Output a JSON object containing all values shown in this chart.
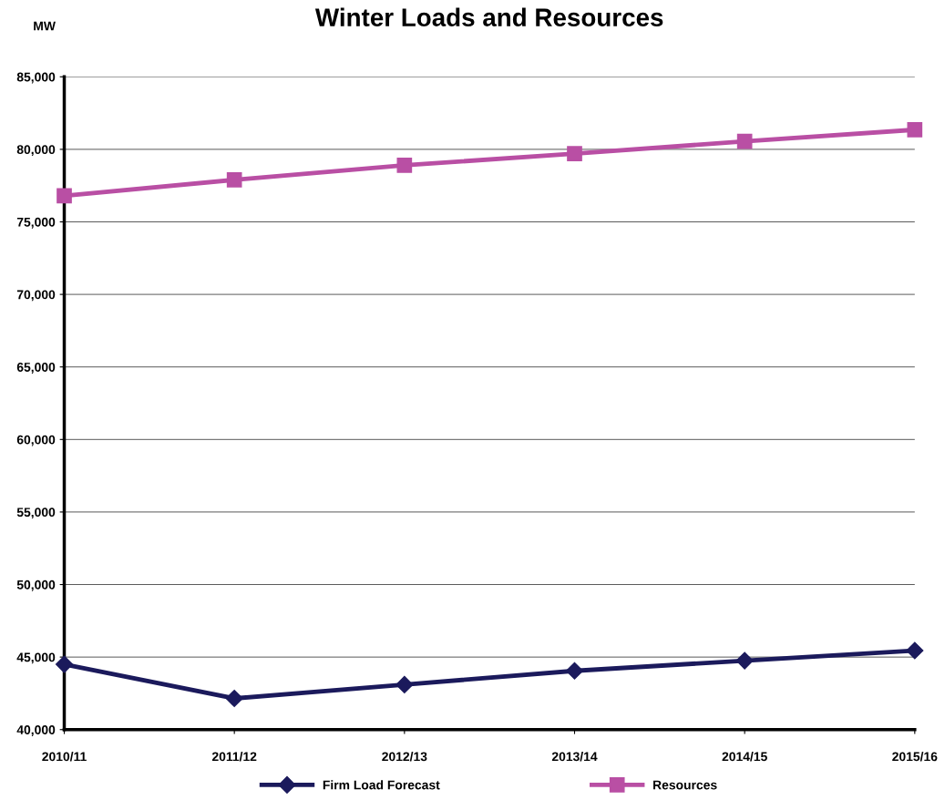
{
  "chart_data": {
    "type": "line",
    "title": "Winter Loads and Resources",
    "ylabel": "MW",
    "categories": [
      "2010/11",
      "2011/12",
      "2012/13",
      "2013/14",
      "2014/15",
      "2015/16"
    ],
    "series": [
      {
        "name": "Firm Load Forecast",
        "color": "#1b1a5c",
        "marker": "diamond",
        "values": [
          44500,
          42150,
          43100,
          44050,
          44750,
          45450
        ]
      },
      {
        "name": "Resources",
        "color": "#b94fa4",
        "marker": "square",
        "values": [
          76800,
          77900,
          78900,
          79700,
          80550,
          81350
        ]
      }
    ],
    "ylim": [
      40000,
      85000
    ],
    "yticks": [
      {
        "value": 40000,
        "label": "40,000"
      },
      {
        "value": 45000,
        "label": "45,000"
      },
      {
        "value": 50000,
        "label": "50,000"
      },
      {
        "value": 55000,
        "label": "55,000"
      },
      {
        "value": 60000,
        "label": "60,000"
      },
      {
        "value": 65000,
        "label": "65,000"
      },
      {
        "value": 70000,
        "label": "70,000"
      },
      {
        "value": 75000,
        "label": "75,000"
      },
      {
        "value": 80000,
        "label": "80,000"
      },
      {
        "value": 85000,
        "label": "85,000"
      }
    ],
    "grid": "y",
    "legend": "bottom",
    "line_style": "solid"
  }
}
